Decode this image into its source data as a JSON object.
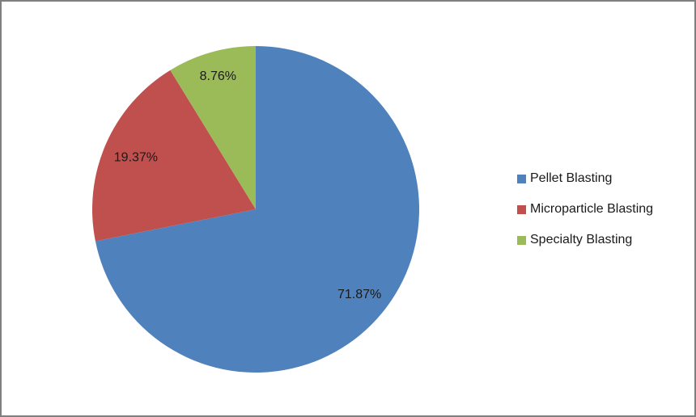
{
  "window": {
    "background_color": "#ffffff",
    "border_color": "#7f7f7f"
  },
  "chart_data": {
    "type": "pie",
    "title": "",
    "categories": [
      "Pellet Blasting",
      "Microparticle Blasting",
      "Specialty Blasting"
    ],
    "values": [
      71.87,
      19.37,
      8.76
    ],
    "slices": [
      {
        "label": "Pellet Blasting",
        "value": 71.87,
        "display": "71.87%",
        "color": "#4F81BD"
      },
      {
        "label": "Microparticle Blasting",
        "value": 19.37,
        "display": "19.37%",
        "color": "#C0504D"
      },
      {
        "label": "Specialty Blasting",
        "value": 8.76,
        "display": "8.76%",
        "color": "#9BBB59"
      }
    ],
    "start_angle_deg": 0,
    "direction": "clockwise",
    "data_labels": "percent, inside slices",
    "label_color": "#1a1a1a",
    "legend_position": "right",
    "grid": false
  }
}
